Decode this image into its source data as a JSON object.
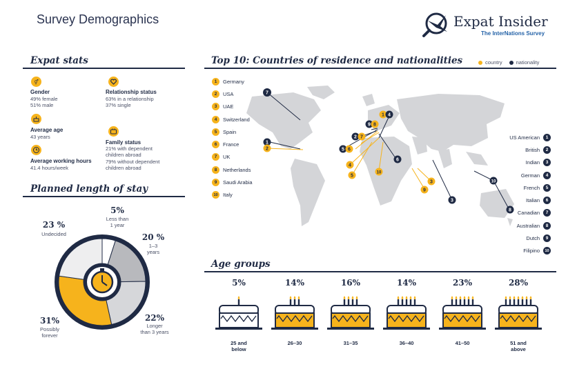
{
  "header": {
    "title": "Survey Demographics"
  },
  "logo": {
    "name": "Expat Insider",
    "tagline": "The InterNations Survey"
  },
  "expat_stats": {
    "title": "Expat stats",
    "items": [
      {
        "icon": "gender-icon",
        "title": "Gender",
        "lines": [
          "49% female",
          "51% male"
        ]
      },
      {
        "icon": "heart-icon",
        "title": "Relationship status",
        "lines": [
          "63% in a relationship",
          "37% single"
        ]
      },
      {
        "icon": "cake-icon",
        "title": "Average age",
        "lines": [
          "43 years"
        ]
      },
      {
        "icon": "family-icon",
        "title": "Family status",
        "lines": [
          "21% with dependent",
          "children abroad",
          "79% without dependent",
          "children abroad"
        ]
      },
      {
        "icon": "clock-icon",
        "title": "Average working hours",
        "lines": [
          "41.4 hours/week"
        ]
      }
    ]
  },
  "stay": {
    "title": "Planned length of stay",
    "segments": [
      {
        "pct": "5%",
        "label": [
          "Less than",
          "1 year"
        ],
        "value": 5,
        "color": "#ffffff"
      },
      {
        "pct": "20 %",
        "label": [
          "1–3",
          "years"
        ],
        "value": 20,
        "color": "#b8b9bd"
      },
      {
        "pct": "22%",
        "label": [
          "Longer",
          "than 3 years"
        ],
        "value": 22,
        "color": "#d6d7da"
      },
      {
        "pct": "31%",
        "label": [
          "Possibly",
          "forever"
        ],
        "value": 31,
        "color": "#f6b31c"
      },
      {
        "pct": "23 %",
        "label": [
          "Undecided"
        ],
        "value": 23,
        "color": "#eeeeef"
      }
    ]
  },
  "top10": {
    "title": "Top 10: Countries of residence and nationalities",
    "legend": {
      "country": "country",
      "nationality": "nationality",
      "country_color": "#f6b31c",
      "nationality_color": "#1f2a44"
    },
    "countries": [
      "Germany",
      "USA",
      "UAE",
      "Switzerland",
      "Spain",
      "France",
      "UK",
      "Netherlands",
      "Saudi Arabia",
      "Italy"
    ],
    "nationalities": [
      "US American",
      "British",
      "Indian",
      "German",
      "French",
      "Italian",
      "Canadian",
      "Australian",
      "Dutch",
      "Filipino"
    ],
    "ranks": [
      "1",
      "2",
      "3",
      "4",
      "5",
      "6",
      "7",
      "8",
      "9",
      "10"
    ]
  },
  "age_groups": {
    "title": "Age groups",
    "groups": [
      {
        "pct": "5%",
        "label": [
          "25 and",
          "below"
        ],
        "candles": 1
      },
      {
        "pct": "14%",
        "label": [
          "26–30"
        ],
        "candles": 3
      },
      {
        "pct": "16%",
        "label": [
          "31–35"
        ],
        "candles": 4
      },
      {
        "pct": "14%",
        "label": [
          "36–40"
        ],
        "candles": 5
      },
      {
        "pct": "23%",
        "label": [
          "41–50"
        ],
        "candles": 6
      },
      {
        "pct": "28%",
        "label": [
          "51 and",
          "above"
        ],
        "candles": 7
      }
    ]
  }
}
